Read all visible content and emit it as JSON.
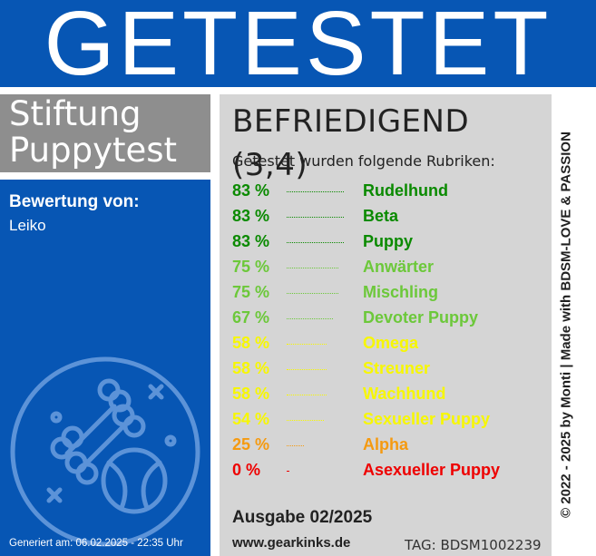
{
  "header": {
    "title": "GETESTET"
  },
  "org": {
    "line1": "Stiftung",
    "line2": "Puppytest"
  },
  "rating": {
    "label": "Bewertung von:",
    "name": "Leiko"
  },
  "generated": "Generiert am: 06.02.2025 - 22:35 Uhr",
  "verdict": "BEFRIEDIGEND (3,4)",
  "categories_intro": "Getestet wurden folgende Rubriken:",
  "categories": [
    {
      "percent": "83 %",
      "name": "Rudelhund",
      "value": 83,
      "color": "#0a8a00"
    },
    {
      "percent": "83 %",
      "name": "Beta",
      "value": 83,
      "color": "#0a8a00"
    },
    {
      "percent": "83 %",
      "name": "Puppy",
      "value": 83,
      "color": "#0a8a00"
    },
    {
      "percent": "75 %",
      "name": "Anwärter",
      "value": 75,
      "color": "#6cc83a"
    },
    {
      "percent": "75 %",
      "name": "Mischling",
      "value": 75,
      "color": "#6cc83a"
    },
    {
      "percent": "67 %",
      "name": "Devoter Puppy",
      "value": 67,
      "color": "#6cc83a"
    },
    {
      "percent": "58 %",
      "name": "Omega",
      "value": 58,
      "color": "#f7f700"
    },
    {
      "percent": "58 %",
      "name": "Streuner",
      "value": 58,
      "color": "#f7f700"
    },
    {
      "percent": "58 %",
      "name": "Wachhund",
      "value": 58,
      "color": "#f7f700"
    },
    {
      "percent": "54 %",
      "name": "Sexueller Puppy",
      "value": 54,
      "color": "#f7f700"
    },
    {
      "percent": "25 %",
      "name": "Alpha",
      "value": 25,
      "color": "#f59a10"
    },
    {
      "percent": "0 %",
      "name": "Asexueller Puppy",
      "value": 0,
      "color": "#ee0000"
    }
  ],
  "issue": "Ausgabe 02/2025",
  "website": "www.gearkinks.de",
  "tag": "TAG: BDSM1002239",
  "copyright": "© 2022 - 2025 by Monti | Made with BDSM-LOVE & PASSION",
  "colors": {
    "brand_blue": "#0756b4",
    "panel_gray": "#d5d5d5",
    "org_gray": "#8e8e8e"
  },
  "icons": {
    "badge": "bone-ball-badge-icon"
  }
}
